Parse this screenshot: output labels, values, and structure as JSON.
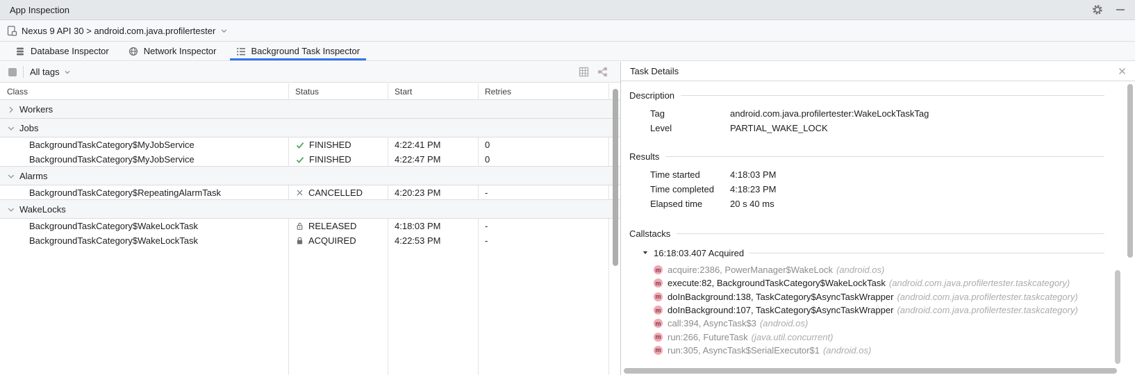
{
  "window": {
    "title": "App Inspection"
  },
  "device_bar": {
    "text": "Nexus 9 API 30 > android.com.java.profilertester"
  },
  "tabs": [
    {
      "label": "Database Inspector",
      "active": false
    },
    {
      "label": "Network Inspector",
      "active": false
    },
    {
      "label": "Background Task Inspector",
      "active": true
    }
  ],
  "toolbar": {
    "filter_label": "All tags"
  },
  "table": {
    "columns": [
      "Class",
      "Status",
      "Start",
      "Retries"
    ],
    "groups": [
      {
        "name": "Workers",
        "expanded": false,
        "rows": []
      },
      {
        "name": "Jobs",
        "expanded": true,
        "rows": [
          {
            "class": "BackgroundTaskCategory$MyJobService",
            "status": "FINISHED",
            "status_icon": "check",
            "start": "4:22:41 PM",
            "retries": "0"
          },
          {
            "class": "BackgroundTaskCategory$MyJobService",
            "status": "FINISHED",
            "status_icon": "check",
            "start": "4:22:47 PM",
            "retries": "0"
          }
        ]
      },
      {
        "name": "Alarms",
        "expanded": true,
        "rows": [
          {
            "class": "BackgroundTaskCategory$RepeatingAlarmTask",
            "status": "CANCELLED",
            "status_icon": "cross",
            "start": "4:20:23 PM",
            "retries": "-"
          }
        ]
      },
      {
        "name": "WakeLocks",
        "expanded": true,
        "rows": [
          {
            "class": "BackgroundTaskCategory$WakeLockTask",
            "status": "RELEASED",
            "status_icon": "lock-open",
            "start": "4:18:03 PM",
            "retries": "-"
          },
          {
            "class": "BackgroundTaskCategory$WakeLockTask",
            "status": "ACQUIRED",
            "status_icon": "lock-closed",
            "start": "4:22:53 PM",
            "retries": "-"
          }
        ]
      }
    ]
  },
  "details": {
    "title": "Task Details",
    "description": {
      "heading": "Description",
      "fields": [
        {
          "label": "Tag",
          "value": "android.com.java.profilertester:WakeLockTaskTag"
        },
        {
          "label": "Level",
          "value": "PARTIAL_WAKE_LOCK"
        }
      ]
    },
    "results": {
      "heading": "Results",
      "fields": [
        {
          "label": "Time started",
          "value": "4:18:03 PM"
        },
        {
          "label": "Time completed",
          "value": "4:18:23 PM"
        },
        {
          "label": "Elapsed time",
          "value": "20 s 40 ms"
        }
      ]
    },
    "callstacks": {
      "heading": "Callstacks",
      "entry": "16:18:03.407 Acquired",
      "frames": [
        {
          "text": "acquire:2386, PowerManager$WakeLock",
          "package": "(android.os)",
          "dim": true
        },
        {
          "text": "execute:82, BackgroundTaskCategory$WakeLockTask",
          "package": "(android.com.java.profilertester.taskcategory)",
          "dim": false
        },
        {
          "text": "doInBackground:138, TaskCategory$AsyncTaskWrapper",
          "package": "(android.com.java.profilertester.taskcategory)",
          "dim": false
        },
        {
          "text": "doInBackground:107, TaskCategory$AsyncTaskWrapper",
          "package": "(android.com.java.profilertester.taskcategory)",
          "dim": false
        },
        {
          "text": "call:394, AsyncTask$3",
          "package": "(android.os)",
          "dim": true
        },
        {
          "text": "run:266, FutureTask",
          "package": "(java.util.concurrent)",
          "dim": true
        },
        {
          "text": "run:305, AsyncTask$SerialExecutor$1",
          "package": "(android.os)",
          "dim": true
        }
      ]
    }
  },
  "colors": {
    "accent": "#3574F0",
    "status_green": "#59A869",
    "icon_gray": "#6E6E6E",
    "method_icon_bg": "#F0A8B2",
    "method_icon_fg": "#823B4B"
  }
}
